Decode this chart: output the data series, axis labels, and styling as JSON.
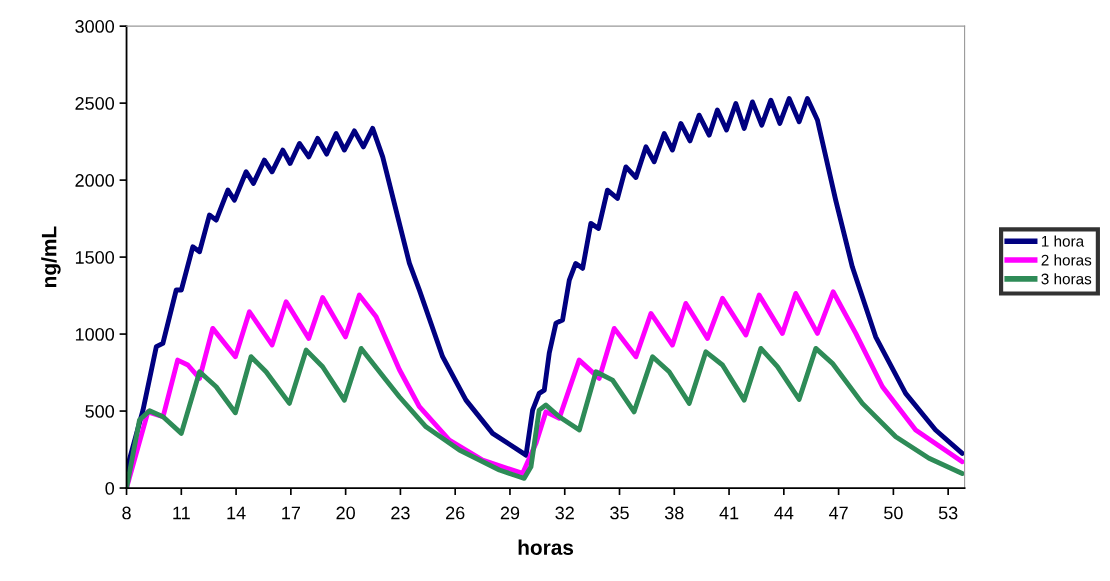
{
  "chart_data": {
    "type": "line",
    "xlabel": "horas",
    "ylabel": "ng/mL",
    "xlim": [
      8,
      53.9
    ],
    "xticks": [
      8,
      11,
      14,
      17,
      20,
      23,
      26,
      29,
      32,
      35,
      38,
      41,
      44,
      47,
      50,
      53
    ],
    "ylim": [
      0,
      3000
    ],
    "yticks": [
      0,
      500,
      1000,
      1500,
      2000,
      2500,
      3000
    ],
    "grid": false,
    "legend": "right",
    "marker": "none",
    "line_style": "solid",
    "series": [
      {
        "name": "1 hora",
        "color": "#000080",
        "x": [
          8.0,
          8.9,
          9.63,
          9.99,
          10.72,
          11.0,
          11.63,
          12.0,
          12.54,
          12.91,
          13.55,
          13.91,
          14.55,
          14.95,
          15.55,
          15.97,
          16.56,
          16.96,
          17.47,
          17.98,
          18.47,
          18.96,
          19.48,
          19.93,
          20.48,
          20.97,
          21.48,
          22.03,
          22.76,
          23.49,
          24.04,
          25.31,
          26.59,
          28.05,
          29.88,
          30.24,
          30.6,
          30.88,
          31.15,
          31.52,
          31.88,
          32.25,
          32.6,
          32.98,
          33.43,
          33.85,
          34.34,
          34.89,
          35.35,
          35.9,
          36.45,
          36.9,
          37.45,
          37.9,
          38.36,
          38.86,
          39.36,
          39.91,
          40.36,
          40.86,
          41.37,
          41.83,
          42.28,
          42.79,
          43.29,
          43.78,
          44.29,
          44.84,
          45.29,
          45.84,
          46.84,
          47.75,
          49.03,
          50.67,
          52.31,
          53.77
        ],
        "values": [
          117,
          506,
          918,
          940,
          1286,
          1286,
          1567,
          1535,
          1773,
          1740,
          1935,
          1870,
          2054,
          1979,
          2130,
          2054,
          2195,
          2108,
          2238,
          2151,
          2271,
          2169,
          2303,
          2195,
          2320,
          2216,
          2336,
          2151,
          1805,
          1461,
          1286,
          853,
          571,
          355,
          214,
          506,
          615,
          636,
          875,
          1071,
          1091,
          1351,
          1459,
          1427,
          1719,
          1686,
          1935,
          1881,
          2086,
          2017,
          2216,
          2119,
          2303,
          2195,
          2368,
          2255,
          2422,
          2292,
          2455,
          2325,
          2498,
          2336,
          2508,
          2357,
          2519,
          2368,
          2530,
          2379,
          2530,
          2390,
          1870,
          1437,
          982,
          615,
          377,
          225
        ]
      },
      {
        "name": "2 horas",
        "color": "#ff00ff",
        "x": [
          8.0,
          9.17,
          10.0,
          10.8,
          11.36,
          12.0,
          12.72,
          13.96,
          14.73,
          15.97,
          16.74,
          17.98,
          18.74,
          19.99,
          20.75,
          21.67,
          22.94,
          24.04,
          25.68,
          27.5,
          29.69,
          30.43,
          30.97,
          31.7,
          32.79,
          33.89,
          34.71,
          35.9,
          36.72,
          37.9,
          38.63,
          39.82,
          40.64,
          41.92,
          42.65,
          43.92,
          44.65,
          45.84,
          46.7,
          47.94,
          49.4,
          51.22,
          53.77
        ],
        "values": [
          0,
          495,
          463,
          831,
          799,
          712,
          1037,
          853,
          1145,
          929,
          1210,
          972,
          1238,
          982,
          1253,
          1112,
          770,
          528,
          312,
          182,
          95,
          292,
          495,
          453,
          831,
          712,
          1037,
          853,
          1134,
          929,
          1199,
          972,
          1232,
          994,
          1253,
          1004,
          1264,
          1004,
          1275,
          1004,
          658,
          377,
          171
        ]
      },
      {
        "name": "3 horas",
        "color": "#2e8b57",
        "x": [
          8.0,
          8.71,
          9.26,
          10.0,
          11.0,
          12.0,
          12.91,
          13.96,
          14.82,
          15.64,
          16.92,
          17.84,
          18.74,
          19.93,
          20.85,
          22.21,
          22.94,
          24.4,
          26.23,
          28.42,
          29.51,
          29.78,
          30.15,
          30.6,
          30.97,
          31.7,
          32.8,
          33.71,
          34.62,
          35.8,
          36.81,
          37.72,
          38.82,
          39.73,
          40.64,
          41.83,
          42.74,
          43.65,
          44.84,
          45.75,
          46.66,
          48.3,
          50.13,
          51.95,
          53.77
        ],
        "values": [
          0,
          442,
          502,
          463,
          355,
          755,
          658,
          489,
          853,
          755,
          550,
          896,
          788,
          571,
          907,
          701,
          593,
          398,
          247,
          117,
          73,
          63,
          138,
          506,
          539,
          463,
          377,
          755,
          701,
          495,
          853,
          755,
          550,
          885,
          799,
          571,
          907,
          788,
          576,
          907,
          810,
          550,
          333,
          193,
          95
        ]
      }
    ]
  }
}
